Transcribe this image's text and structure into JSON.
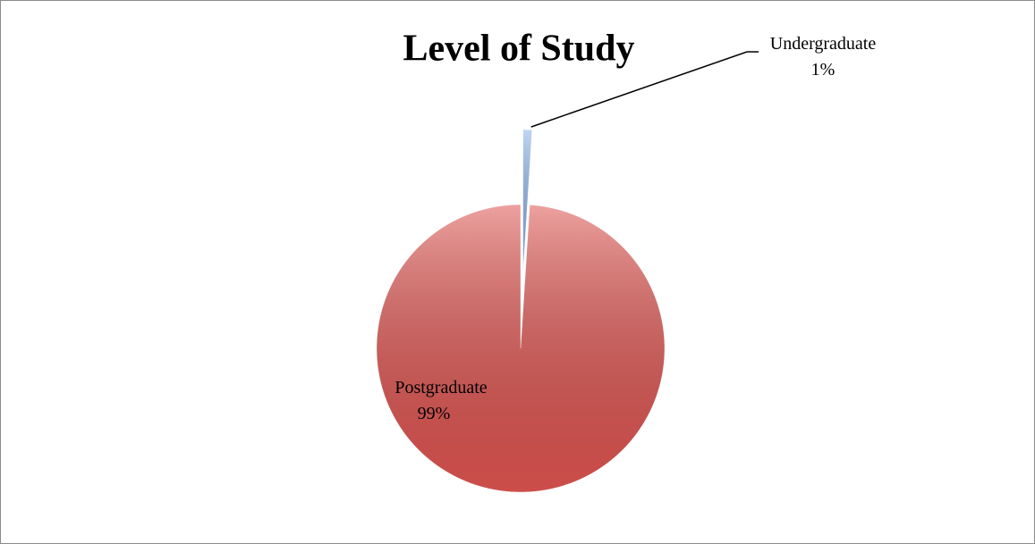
{
  "chart_data": {
    "type": "pie",
    "title": "Level of Study",
    "categories": [
      "Undergraduate",
      "Postgraduate"
    ],
    "values": [
      1,
      99
    ],
    "value_labels": [
      "1%",
      "99%"
    ],
    "colors": [
      "#8db4ec",
      "#de5450"
    ]
  }
}
